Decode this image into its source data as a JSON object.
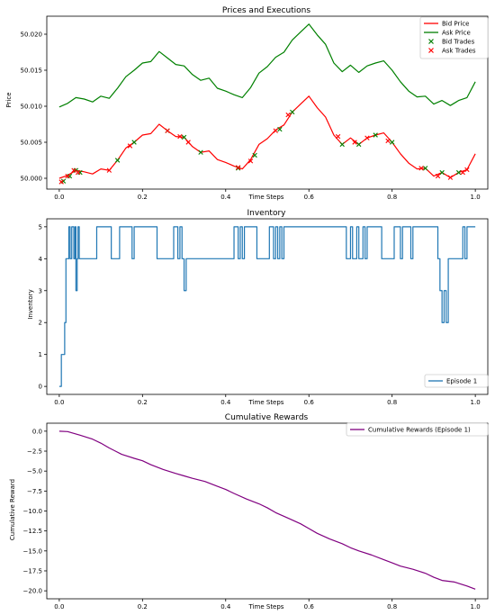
{
  "chart_data": [
    {
      "type": "line",
      "title": "Prices and Executions",
      "xlabel": "Time Steps",
      "ylabel": "Price",
      "xlim": [
        -0.03,
        1.03
      ],
      "ylim": [
        49.9985,
        50.0225
      ],
      "xticks": [
        0.0,
        0.2,
        0.4,
        0.6,
        0.8,
        1.0
      ],
      "xtick_labels": [
        "0.0",
        "0.2",
        "0.4",
        "0.6",
        "0.8",
        "1.0"
      ],
      "yticks": [
        50.0,
        50.005,
        50.01,
        50.015,
        50.02
      ],
      "ytick_labels": [
        "50.000",
        "50.005",
        "50.010",
        "50.015",
        "50.020"
      ],
      "legend_position": "top-right",
      "series": [
        {
          "name": "Bid Price",
          "kind": "line",
          "color": "#ff0000",
          "x": [
            0.0,
            0.02,
            0.04,
            0.06,
            0.08,
            0.1,
            0.12,
            0.14,
            0.16,
            0.18,
            0.2,
            0.22,
            0.24,
            0.26,
            0.28,
            0.3,
            0.32,
            0.34,
            0.36,
            0.38,
            0.4,
            0.42,
            0.44,
            0.46,
            0.48,
            0.5,
            0.52,
            0.54,
            0.56,
            0.58,
            0.6,
            0.62,
            0.64,
            0.66,
            0.68,
            0.7,
            0.72,
            0.74,
            0.76,
            0.78,
            0.8,
            0.82,
            0.84,
            0.86,
            0.88,
            0.9,
            0.92,
            0.94,
            0.96,
            0.98,
            1.0
          ],
          "values": [
            50.0,
            50.0004,
            50.0011,
            50.0009,
            50.0006,
            50.0013,
            50.0011,
            50.0025,
            50.0042,
            50.005,
            50.006,
            50.0062,
            50.0075,
            50.0066,
            50.0058,
            50.0057,
            50.0044,
            50.0036,
            50.0038,
            50.0026,
            50.0022,
            50.0017,
            50.0013,
            50.0026,
            50.0047,
            50.0055,
            50.0067,
            50.0074,
            50.0092,
            50.0103,
            50.0114,
            50.0098,
            50.0085,
            50.006,
            50.0047,
            50.0056,
            50.0047,
            50.0056,
            50.006,
            50.0063,
            50.005,
            50.0034,
            50.0021,
            50.0013,
            50.0014,
            50.0003,
            50.0008,
            50.0001,
            50.0008,
            50.0012,
            50.0034
          ]
        },
        {
          "name": "Ask Price",
          "kind": "line",
          "color": "#008000",
          "x": [
            0.0,
            0.02,
            0.04,
            0.06,
            0.08,
            0.1,
            0.12,
            0.14,
            0.16,
            0.18,
            0.2,
            0.22,
            0.24,
            0.26,
            0.28,
            0.3,
            0.32,
            0.34,
            0.36,
            0.38,
            0.4,
            0.42,
            0.44,
            0.46,
            0.48,
            0.5,
            0.52,
            0.54,
            0.56,
            0.58,
            0.6,
            0.62,
            0.64,
            0.66,
            0.68,
            0.7,
            0.72,
            0.74,
            0.76,
            0.78,
            0.8,
            0.82,
            0.84,
            0.86,
            0.88,
            0.9,
            0.92,
            0.94,
            0.96,
            0.98,
            1.0
          ],
          "values": [
            50.0099,
            50.0104,
            50.0112,
            50.011,
            50.0106,
            50.0114,
            50.0111,
            50.0125,
            50.0141,
            50.015,
            50.016,
            50.0162,
            50.0176,
            50.0167,
            50.0158,
            50.0156,
            50.0144,
            50.0136,
            50.0139,
            50.0125,
            50.0121,
            50.0116,
            50.0112,
            50.0126,
            50.0146,
            50.0155,
            50.0168,
            50.0175,
            50.0192,
            50.0203,
            50.0214,
            50.0199,
            50.0186,
            50.016,
            50.0148,
            50.0157,
            50.0147,
            50.0156,
            50.016,
            50.0163,
            50.015,
            50.0134,
            50.0121,
            50.0113,
            50.0114,
            50.0103,
            50.0108,
            50.0101,
            50.0108,
            50.0112,
            50.0134
          ]
        },
        {
          "name": "Bid Trades",
          "kind": "scatter",
          "marker": "x",
          "color": "#008000",
          "x": [
            0.01,
            0.025,
            0.04,
            0.05,
            0.14,
            0.18,
            0.26,
            0.3,
            0.34,
            0.43,
            0.47,
            0.53,
            0.56,
            0.68,
            0.72,
            0.76,
            0.8,
            0.88,
            0.92,
            0.96
          ],
          "values": [
            49.9996,
            50.0003,
            50.0011,
            50.0008,
            50.0025,
            50.005,
            50.0066,
            50.0057,
            50.0036,
            50.0014,
            50.0032,
            50.0068,
            50.0092,
            50.0047,
            50.0047,
            50.006,
            50.005,
            50.0014,
            50.0008,
            50.0008
          ]
        },
        {
          "name": "Ask Trades",
          "kind": "scatter",
          "marker": "x",
          "color": "#ff0000",
          "x": [
            0.005,
            0.02,
            0.035,
            0.045,
            0.12,
            0.17,
            0.26,
            0.29,
            0.31,
            0.43,
            0.46,
            0.52,
            0.55,
            0.67,
            0.71,
            0.74,
            0.79,
            0.87,
            0.91,
            0.94,
            0.97,
            0.98
          ],
          "values": [
            49.9995,
            50.0003,
            50.0011,
            50.0008,
            50.0011,
            50.0045,
            50.0066,
            50.0058,
            50.005,
            50.0015,
            50.0024,
            50.0066,
            50.0088,
            50.0058,
            50.005,
            50.0056,
            50.0052,
            50.0014,
            50.0003,
            50.0001,
            50.0008,
            50.0012
          ]
        }
      ]
    },
    {
      "type": "line",
      "title": "Inventory",
      "xlabel": "Time Steps",
      "ylabel": "Inventory",
      "xlim": [
        -0.03,
        1.03
      ],
      "ylim": [
        -0.25,
        5.25
      ],
      "xticks": [
        0.0,
        0.2,
        0.4,
        0.6,
        0.8,
        1.0
      ],
      "xtick_labels": [
        "0.0",
        "0.2",
        "0.4",
        "0.6",
        "0.8",
        "1.0"
      ],
      "yticks": [
        0,
        1,
        2,
        3,
        4,
        5
      ],
      "ytick_labels": [
        "0",
        "1",
        "2",
        "3",
        "4",
        "5"
      ],
      "legend_position": "lower-right",
      "series": [
        {
          "name": "Episode 1",
          "kind": "step",
          "color": "#1f77b4",
          "x": [
            0.0,
            0.005,
            0.01,
            0.013,
            0.016,
            0.02,
            0.023,
            0.026,
            0.03,
            0.035,
            0.038,
            0.04,
            0.043,
            0.045,
            0.048,
            0.05,
            0.09,
            0.12,
            0.125,
            0.14,
            0.145,
            0.175,
            0.18,
            0.23,
            0.235,
            0.27,
            0.275,
            0.285,
            0.29,
            0.295,
            0.3,
            0.305,
            0.31,
            0.415,
            0.42,
            0.43,
            0.435,
            0.44,
            0.445,
            0.47,
            0.475,
            0.5,
            0.505,
            0.515,
            0.52,
            0.525,
            0.53,
            0.535,
            0.54,
            0.57,
            0.685,
            0.69,
            0.7,
            0.705,
            0.715,
            0.72,
            0.73,
            0.735,
            0.74,
            0.745,
            0.77,
            0.775,
            0.8,
            0.805,
            0.82,
            0.825,
            0.84,
            0.845,
            0.85,
            0.855,
            0.88,
            0.9,
            0.91,
            0.915,
            0.92,
            0.925,
            0.93,
            0.935,
            0.94,
            0.96,
            0.97,
            0.975,
            0.98,
            0.985,
            1.0
          ],
          "values": [
            0,
            1,
            1,
            2,
            4,
            4,
            5,
            4,
            5,
            4,
            5,
            3,
            4,
            5,
            4,
            4,
            5,
            5,
            4,
            4,
            5,
            4,
            5,
            5,
            4,
            4,
            5,
            4,
            5,
            4,
            3,
            4,
            4,
            4,
            5,
            4,
            5,
            4,
            5,
            5,
            4,
            4,
            5,
            4,
            5,
            4,
            5,
            4,
            5,
            5,
            5,
            4,
            5,
            4,
            5,
            4,
            5,
            4,
            5,
            5,
            5,
            4,
            4,
            5,
            4,
            5,
            5,
            4,
            5,
            5,
            5,
            5,
            4,
            3,
            2,
            3,
            2,
            4,
            4,
            4,
            5,
            4,
            5,
            5,
            5
          ]
        }
      ]
    },
    {
      "type": "line",
      "title": "Cumulative Rewards",
      "xlabel": "Time Steps",
      "ylabel": "Cumulative Reward",
      "xlim": [
        -0.03,
        1.03
      ],
      "ylim": [
        -21.0,
        1.0
      ],
      "xticks": [
        0.0,
        0.2,
        0.4,
        0.6,
        0.8,
        1.0
      ],
      "xtick_labels": [
        "0.0",
        "0.2",
        "0.4",
        "0.6",
        "0.8",
        "1.0"
      ],
      "yticks": [
        0.0,
        -2.5,
        -5.0,
        -7.5,
        -10.0,
        -12.5,
        -15.0,
        -17.5,
        -20.0
      ],
      "ytick_labels": [
        "0.0",
        "−2.5",
        "−5.0",
        "−7.5",
        "−10.0",
        "−12.5",
        "−15.0",
        "−17.5",
        "−20.0"
      ],
      "legend_position": "top-right",
      "series": [
        {
          "name": "Cumulative Rewards (Episode 1)",
          "kind": "line",
          "color": "#800080",
          "x": [
            0.0,
            0.02,
            0.05,
            0.08,
            0.1,
            0.12,
            0.15,
            0.18,
            0.2,
            0.22,
            0.25,
            0.28,
            0.3,
            0.32,
            0.35,
            0.38,
            0.4,
            0.42,
            0.45,
            0.48,
            0.5,
            0.52,
            0.55,
            0.58,
            0.6,
            0.62,
            0.65,
            0.68,
            0.7,
            0.72,
            0.75,
            0.78,
            0.8,
            0.82,
            0.85,
            0.88,
            0.9,
            0.92,
            0.95,
            0.98,
            1.0
          ],
          "values": [
            0.0,
            -0.05,
            -0.5,
            -1.0,
            -1.5,
            -2.1,
            -2.9,
            -3.4,
            -3.7,
            -4.2,
            -4.8,
            -5.3,
            -5.6,
            -5.9,
            -6.3,
            -6.9,
            -7.3,
            -7.8,
            -8.5,
            -9.1,
            -9.6,
            -10.2,
            -10.9,
            -11.6,
            -12.2,
            -12.8,
            -13.5,
            -14.1,
            -14.6,
            -15.0,
            -15.5,
            -16.1,
            -16.5,
            -16.9,
            -17.3,
            -17.8,
            -18.3,
            -18.7,
            -18.9,
            -19.4,
            -19.8
          ]
        }
      ]
    }
  ]
}
